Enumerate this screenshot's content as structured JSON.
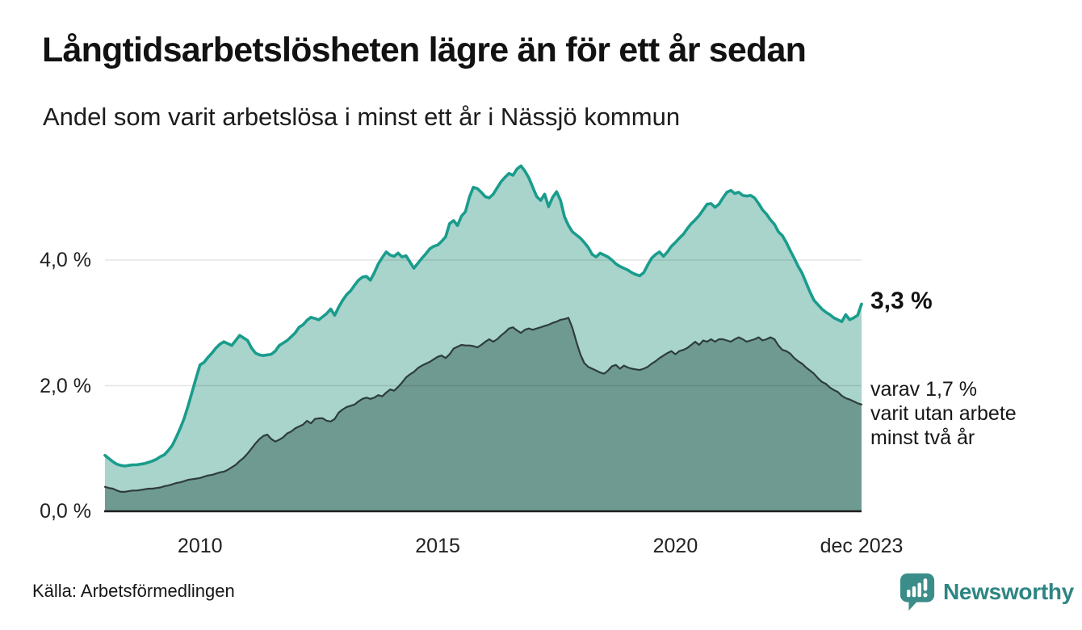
{
  "header": {
    "title": "Långtidsarbetslösheten lägre än för ett år sedan",
    "subtitle": "Andel som varit arbetslösa i minst ett år i Nässjö kommun"
  },
  "chart_data": {
    "type": "area",
    "title": "Långtidsarbetslösheten lägre än för ett år sedan",
    "subtitle": "Andel som varit arbetslösa i minst ett år i Nässjö kommun",
    "unit": "%",
    "frequency": "monthly",
    "x_start": "2008-01",
    "x_end": "2023-12",
    "xlim": [
      2008.0,
      2023.9167
    ],
    "ylim": [
      0,
      5.6
    ],
    "grid": "horizontal",
    "colors": {
      "line_total": "#1a9c8c",
      "fill_total": "#a8d4cc",
      "line_two_year": "#2e3d3a",
      "fill_two_year": "#6e9a92",
      "baseline": "#1f1f1f",
      "gridline_opacity": 0.1
    },
    "y_ticks": [
      {
        "value": 0,
        "label": "0,0 %"
      },
      {
        "value": 2,
        "label": "2,0 %"
      },
      {
        "value": 4,
        "label": "4,0 %"
      }
    ],
    "x_ticks": [
      {
        "t": 2010,
        "label": "2010"
      },
      {
        "t": 2015,
        "label": "2015"
      },
      {
        "t": 2020,
        "label": "2020"
      },
      {
        "t": 2023.9167,
        "label": "dec 2023"
      }
    ],
    "series": [
      {
        "name": "Andel som varit arbetslösa i minst ett år",
        "color": "#1a9c8c",
        "fill": "#a8d4cc",
        "values": [
          0.89,
          0.84,
          0.79,
          0.75,
          0.73,
          0.72,
          0.73,
          0.74,
          0.74,
          0.75,
          0.76,
          0.78,
          0.8,
          0.83,
          0.87,
          0.9,
          0.97,
          1.05,
          1.18,
          1.32,
          1.48,
          1.68,
          1.9,
          2.12,
          2.33,
          2.37,
          2.45,
          2.52,
          2.6,
          2.66,
          2.7,
          2.67,
          2.64,
          2.72,
          2.8,
          2.76,
          2.72,
          2.6,
          2.52,
          2.49,
          2.48,
          2.49,
          2.5,
          2.55,
          2.64,
          2.68,
          2.72,
          2.78,
          2.84,
          2.93,
          2.97,
          3.04,
          3.09,
          3.07,
          3.05,
          3.1,
          3.15,
          3.22,
          3.12,
          3.25,
          3.36,
          3.45,
          3.51,
          3.6,
          3.68,
          3.73,
          3.74,
          3.68,
          3.8,
          3.94,
          4.04,
          4.13,
          4.08,
          4.06,
          4.11,
          4.05,
          4.07,
          3.97,
          3.87,
          3.95,
          4.03,
          4.1,
          4.18,
          4.22,
          4.24,
          4.3,
          4.37,
          4.58,
          4.63,
          4.55,
          4.7,
          4.77,
          5.0,
          5.16,
          5.14,
          5.08,
          5.01,
          4.99,
          5.05,
          5.15,
          5.25,
          5.32,
          5.38,
          5.35,
          5.45,
          5.5,
          5.42,
          5.31,
          5.16,
          5.01,
          4.95,
          5.05,
          4.85,
          5.0,
          5.09,
          4.95,
          4.69,
          4.55,
          4.45,
          4.4,
          4.35,
          4.28,
          4.2,
          4.09,
          4.05,
          4.11,
          4.08,
          4.05,
          4.0,
          3.94,
          3.9,
          3.87,
          3.84,
          3.8,
          3.77,
          3.75,
          3.8,
          3.92,
          4.03,
          4.09,
          4.13,
          4.06,
          4.13,
          4.22,
          4.28,
          4.35,
          4.41,
          4.5,
          4.58,
          4.64,
          4.71,
          4.8,
          4.89,
          4.9,
          4.84,
          4.89,
          4.99,
          5.08,
          5.11,
          5.06,
          5.08,
          5.03,
          5.02,
          5.03,
          4.99,
          4.9,
          4.8,
          4.73,
          4.64,
          4.57,
          4.45,
          4.39,
          4.28,
          4.15,
          4.03,
          3.9,
          3.79,
          3.64,
          3.49,
          3.36,
          3.29,
          3.22,
          3.17,
          3.13,
          3.08,
          3.05,
          3.02,
          3.13,
          3.05,
          3.08,
          3.12,
          3.3
        ]
      },
      {
        "name": "varav utan arbete minst två år",
        "color": "#2e3d3a",
        "fill": "#6e9a92",
        "values": [
          0.39,
          0.37,
          0.36,
          0.33,
          0.31,
          0.31,
          0.32,
          0.33,
          0.33,
          0.34,
          0.35,
          0.36,
          0.36,
          0.37,
          0.38,
          0.4,
          0.41,
          0.43,
          0.45,
          0.46,
          0.48,
          0.5,
          0.51,
          0.52,
          0.53,
          0.55,
          0.57,
          0.58,
          0.6,
          0.62,
          0.63,
          0.66,
          0.7,
          0.74,
          0.8,
          0.85,
          0.92,
          1.0,
          1.08,
          1.15,
          1.2,
          1.22,
          1.15,
          1.11,
          1.14,
          1.18,
          1.24,
          1.27,
          1.32,
          1.35,
          1.38,
          1.44,
          1.4,
          1.47,
          1.48,
          1.48,
          1.44,
          1.43,
          1.47,
          1.57,
          1.62,
          1.66,
          1.68,
          1.7,
          1.75,
          1.79,
          1.81,
          1.79,
          1.81,
          1.85,
          1.83,
          1.89,
          1.94,
          1.92,
          1.98,
          2.05,
          2.13,
          2.18,
          2.22,
          2.28,
          2.32,
          2.35,
          2.38,
          2.42,
          2.46,
          2.48,
          2.44,
          2.5,
          2.59,
          2.62,
          2.65,
          2.64,
          2.64,
          2.63,
          2.61,
          2.65,
          2.7,
          2.74,
          2.7,
          2.74,
          2.8,
          2.85,
          2.91,
          2.93,
          2.88,
          2.84,
          2.89,
          2.91,
          2.89,
          2.91,
          2.93,
          2.95,
          2.97,
          3.0,
          3.02,
          3.05,
          3.06,
          3.08,
          2.92,
          2.7,
          2.5,
          2.36,
          2.3,
          2.27,
          2.24,
          2.21,
          2.19,
          2.24,
          2.31,
          2.33,
          2.27,
          2.32,
          2.29,
          2.27,
          2.26,
          2.25,
          2.27,
          2.3,
          2.35,
          2.39,
          2.44,
          2.48,
          2.52,
          2.55,
          2.5,
          2.55,
          2.57,
          2.6,
          2.65,
          2.7,
          2.65,
          2.72,
          2.7,
          2.74,
          2.7,
          2.74,
          2.74,
          2.72,
          2.7,
          2.74,
          2.77,
          2.74,
          2.7,
          2.72,
          2.74,
          2.77,
          2.72,
          2.74,
          2.77,
          2.74,
          2.64,
          2.57,
          2.55,
          2.51,
          2.44,
          2.39,
          2.35,
          2.29,
          2.24,
          2.19,
          2.12,
          2.06,
          2.03,
          1.97,
          1.93,
          1.9,
          1.84,
          1.8,
          1.78,
          1.75,
          1.72,
          1.7
        ]
      }
    ],
    "end_labels": {
      "total": "3,3 %",
      "sub_line1": "varav 1,7 %",
      "sub_line2": "varit utan arbete",
      "sub_line3": "minst två år"
    }
  },
  "footer": {
    "source": "Källa: Arbetsförmedlingen",
    "brand": "Newsworthy"
  }
}
